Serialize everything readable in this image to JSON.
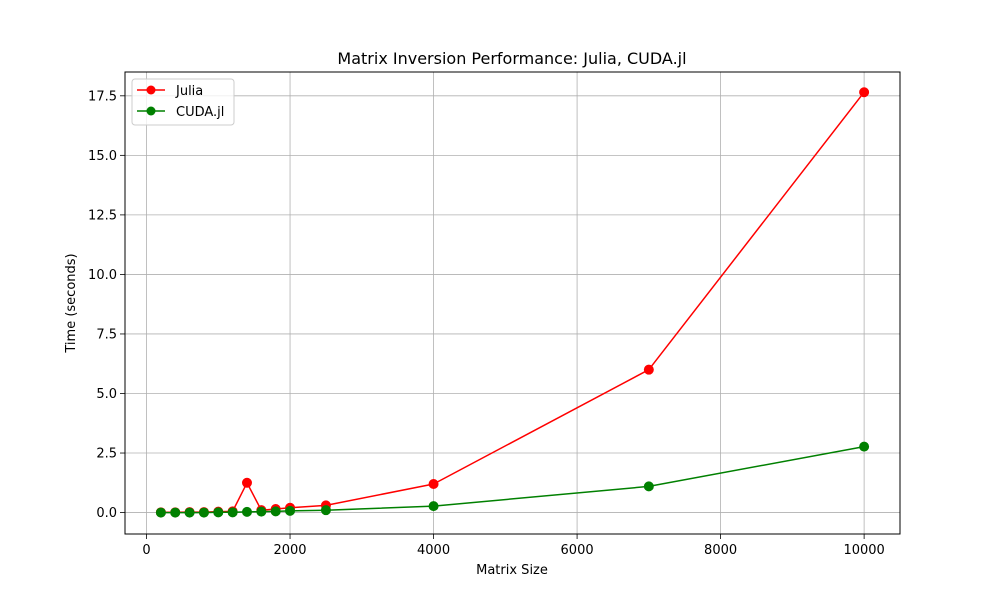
{
  "chart_data": {
    "type": "line",
    "title": "Matrix Inversion Performance: Julia, CUDA.jl",
    "xlabel": "Matrix Size",
    "ylabel": "Time (seconds)",
    "xlim": [
      -300,
      10500
    ],
    "ylim": [
      -0.9,
      18.5
    ],
    "xticks": [
      0,
      2000,
      4000,
      6000,
      8000,
      10000
    ],
    "yticks": [
      0.0,
      2.5,
      5.0,
      7.5,
      10.0,
      12.5,
      15.0,
      17.5
    ],
    "xtick_labels": [
      "0",
      "2000",
      "4000",
      "6000",
      "8000",
      "10000"
    ],
    "ytick_labels": [
      "0.0",
      "2.5",
      "5.0",
      "7.5",
      "10.0",
      "12.5",
      "15.0",
      "17.5"
    ],
    "grid": true,
    "legend_position": "top-left",
    "x": [
      200,
      400,
      600,
      800,
      1000,
      1200,
      1400,
      1600,
      1800,
      2000,
      2500,
      4000,
      7000,
      10000
    ],
    "series": [
      {
        "name": "Julia",
        "color": "#ff0000",
        "marker": "circle",
        "values": [
          0.01,
          0.01,
          0.02,
          0.02,
          0.04,
          0.05,
          1.25,
          0.1,
          0.15,
          0.2,
          0.3,
          1.2,
          6.0,
          17.65
        ]
      },
      {
        "name": "CUDA.jl",
        "color": "#008000",
        "marker": "circle",
        "values": [
          0.0,
          0.0,
          0.0,
          0.0,
          0.01,
          0.01,
          0.03,
          0.04,
          0.05,
          0.07,
          0.1,
          0.27,
          1.1,
          2.77
        ]
      }
    ]
  }
}
